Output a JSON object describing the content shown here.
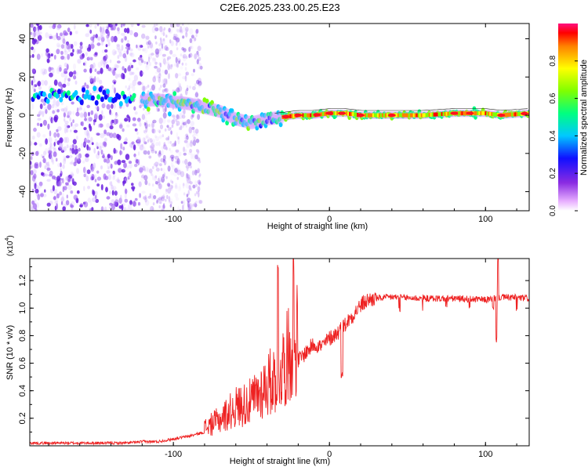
{
  "page_title": "C2E6.2025.233.00.25.E23",
  "chart_data": [
    {
      "type": "heatmap",
      "title": "C2E6.2025.233.00.25.E23",
      "xlabel": "Height of straight line (km)",
      "ylabel": "Frequency (Hz)",
      "xlim": [
        -192,
        128
      ],
      "ylim": [
        -50,
        48
      ],
      "xticks": [
        "-100",
        "0",
        "100"
      ],
      "yticks": [
        "-40",
        "-20",
        "0",
        "20",
        "40"
      ],
      "colorbar": {
        "label": "Normalized spectral amplitude",
        "range": [
          0,
          1
        ],
        "ticks": [
          "0.0",
          "0.2",
          "0.4",
          "0.6",
          "0.8"
        ]
      },
      "description_points": {
        "x": [
          -190,
          -170,
          -150,
          -130,
          -120,
          -110,
          -100,
          -90,
          -80,
          -70,
          -60,
          -50,
          -40,
          -30,
          -20,
          -10,
          0,
          10,
          20,
          40,
          60,
          80,
          100,
          110,
          128
        ],
        "center_freq": [
          11,
          10,
          9,
          9,
          8,
          8,
          7,
          6,
          4,
          2,
          -2,
          -4,
          -2,
          -1,
          0,
          0,
          1,
          1,
          0,
          0,
          0,
          1,
          1,
          0,
          1
        ]
      }
    },
    {
      "type": "line",
      "xlabel": "Height of straight line (km)",
      "ylabel": "SNR (10 * v/v)",
      "multiplier": "(x10",
      "multiplier_exp": "4",
      "multiplier_close": ")",
      "xlim": [
        -192,
        128
      ],
      "ylim": [
        0,
        1.36
      ],
      "xticks": [
        "-100",
        "0",
        "100"
      ],
      "yticks": [
        "0.2",
        "0.4",
        "0.6",
        "0.8",
        "1.0",
        "1.2"
      ],
      "color": "#ee2222",
      "series": [
        {
          "name": "SNR",
          "x": [
            -192,
            -170,
            -150,
            -130,
            -120,
            -110,
            -100,
            -90,
            -80,
            -70,
            -60,
            -50,
            -45,
            -40,
            -35,
            -30,
            -27,
            -25,
            -20,
            -15,
            -10,
            -5,
            0,
            5,
            10,
            15,
            20,
            25,
            30,
            40,
            60,
            80,
            100,
            110,
            128
          ],
          "y": [
            0.02,
            0.02,
            0.02,
            0.02,
            0.03,
            0.03,
            0.05,
            0.07,
            0.1,
            0.15,
            0.22,
            0.25,
            0.3,
            0.35,
            0.38,
            0.45,
            0.5,
            0.55,
            0.62,
            0.68,
            0.74,
            0.72,
            0.78,
            0.82,
            0.88,
            0.95,
            1.02,
            1.06,
            1.07,
            1.08,
            1.07,
            1.07,
            1.06,
            1.08,
            1.07
          ]
        }
      ]
    }
  ],
  "colors": {
    "line": "#ee2222",
    "scatter": "#6a1fe0"
  }
}
